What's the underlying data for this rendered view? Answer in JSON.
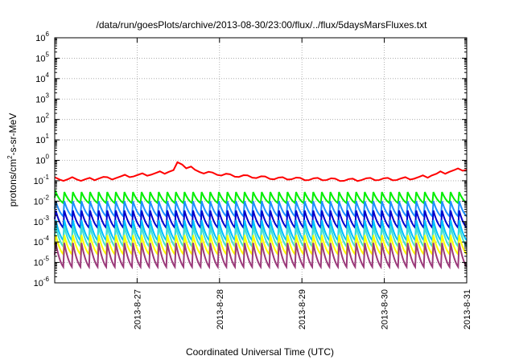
{
  "chart_data": {
    "type": "line",
    "title": "/data/run/goesPlots/archive/2013-08-30/23:00/flux/../flux/5daysMarsFluxes.txt",
    "xlabel": "Coordinated Universal Time (UTC)",
    "ylabel": {
      "prefix": "protons/cm",
      "sup": "2",
      "suffix": "-s-sr-MeV"
    },
    "y_scale": "log",
    "y_exponent_range": [
      -6,
      6
    ],
    "y_tick_base": "10",
    "y_tick_exponents": [
      "-6",
      "-5",
      "-4",
      "-3",
      "-2",
      "-1",
      "0",
      "1",
      "2",
      "3",
      "4",
      "5",
      "6"
    ],
    "x_range": [
      "2013-08-26",
      "2013-08-31"
    ],
    "x_ticks": [
      {
        "date": "2013-08-27",
        "label": "2013-8-27"
      },
      {
        "date": "2013-08-28",
        "label": "2013-8-28"
      },
      {
        "date": "2013-08-29",
        "label": "2013-8-29"
      },
      {
        "date": "2013-08-30",
        "label": "2013-8-30"
      },
      {
        "date": "2013-08-31",
        "label": "2013-8-31"
      }
    ],
    "grid": true,
    "legend": "none",
    "sawtooth_cycles": 48,
    "series": [
      {
        "color": "#ff0000",
        "style": "smooth",
        "values_approx": [
          0.13,
          0.11,
          0.13,
          0.11,
          0.12,
          0.14,
          0.13,
          0.15,
          0.17,
          0.18,
          0.2,
          0.22,
          0.25,
          0.3,
          0.7,
          0.45,
          0.3,
          0.25,
          0.22,
          0.2,
          0.18,
          0.17,
          0.16,
          0.15,
          0.14,
          0.13,
          0.13,
          0.13,
          0.12,
          0.12,
          0.12,
          0.12,
          0.11,
          0.11,
          0.11,
          0.12,
          0.12,
          0.12,
          0.12,
          0.12,
          0.13,
          0.14,
          0.16,
          0.2,
          0.25,
          0.3,
          0.35,
          0.38
        ]
      },
      {
        "color": "#00ee00",
        "style": "sawtooth",
        "high": 0.028,
        "low": 0.008
      },
      {
        "color": "#1e90ff",
        "style": "sawtooth",
        "high": 0.01,
        "low": 0.0018
      },
      {
        "color": "#0000cd",
        "style": "sawtooth",
        "high": 0.0035,
        "low": 0.0005
      },
      {
        "color": "#00bfff",
        "style": "sawtooth",
        "high": 0.0012,
        "low": 0.00012
      },
      {
        "color": "#40e0d0",
        "style": "sawtooth",
        "high": 0.0006,
        "low": 6e-05
      },
      {
        "color": "#ffff00",
        "style": "sawtooth",
        "high": 0.00022,
        "low": 2.5e-05
      },
      {
        "color": "#9b3a7a",
        "style": "sawtooth",
        "high": 9e-05,
        "low": 6e-06
      }
    ]
  }
}
